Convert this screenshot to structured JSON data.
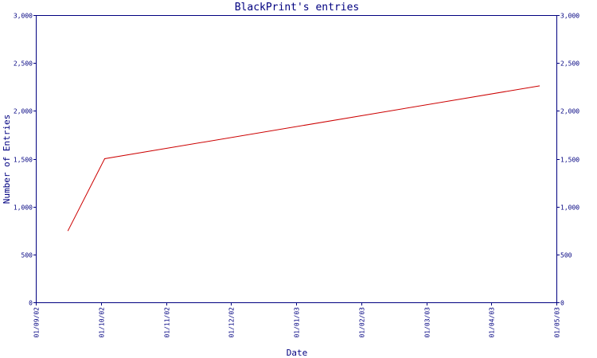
{
  "chart_data": {
    "type": "line",
    "title": "BlackPrint's entries",
    "xlabel": "Date",
    "ylabel": "Number of Entries",
    "x_tick_labels": [
      "01/09/02",
      "01/10/02",
      "01/11/02",
      "01/12/02",
      "01/01/03",
      "01/02/03",
      "01/03/03",
      "01/04/03",
      "01/05/03"
    ],
    "y_tick_labels": [
      "0",
      "500",
      "1,000",
      "1,500",
      "2,000",
      "2,500",
      "3,000"
    ],
    "ylim": [
      0,
      3000
    ],
    "y_ticks": [
      0,
      500,
      1000,
      1500,
      2000,
      2500,
      3000
    ],
    "grid": false,
    "series": [
      {
        "color": "#cc0000",
        "x": [
          "2002-09-16",
          "2002-10-03",
          "2003-04-23"
        ],
        "y": [
          750,
          1500,
          2260
        ]
      }
    ]
  }
}
